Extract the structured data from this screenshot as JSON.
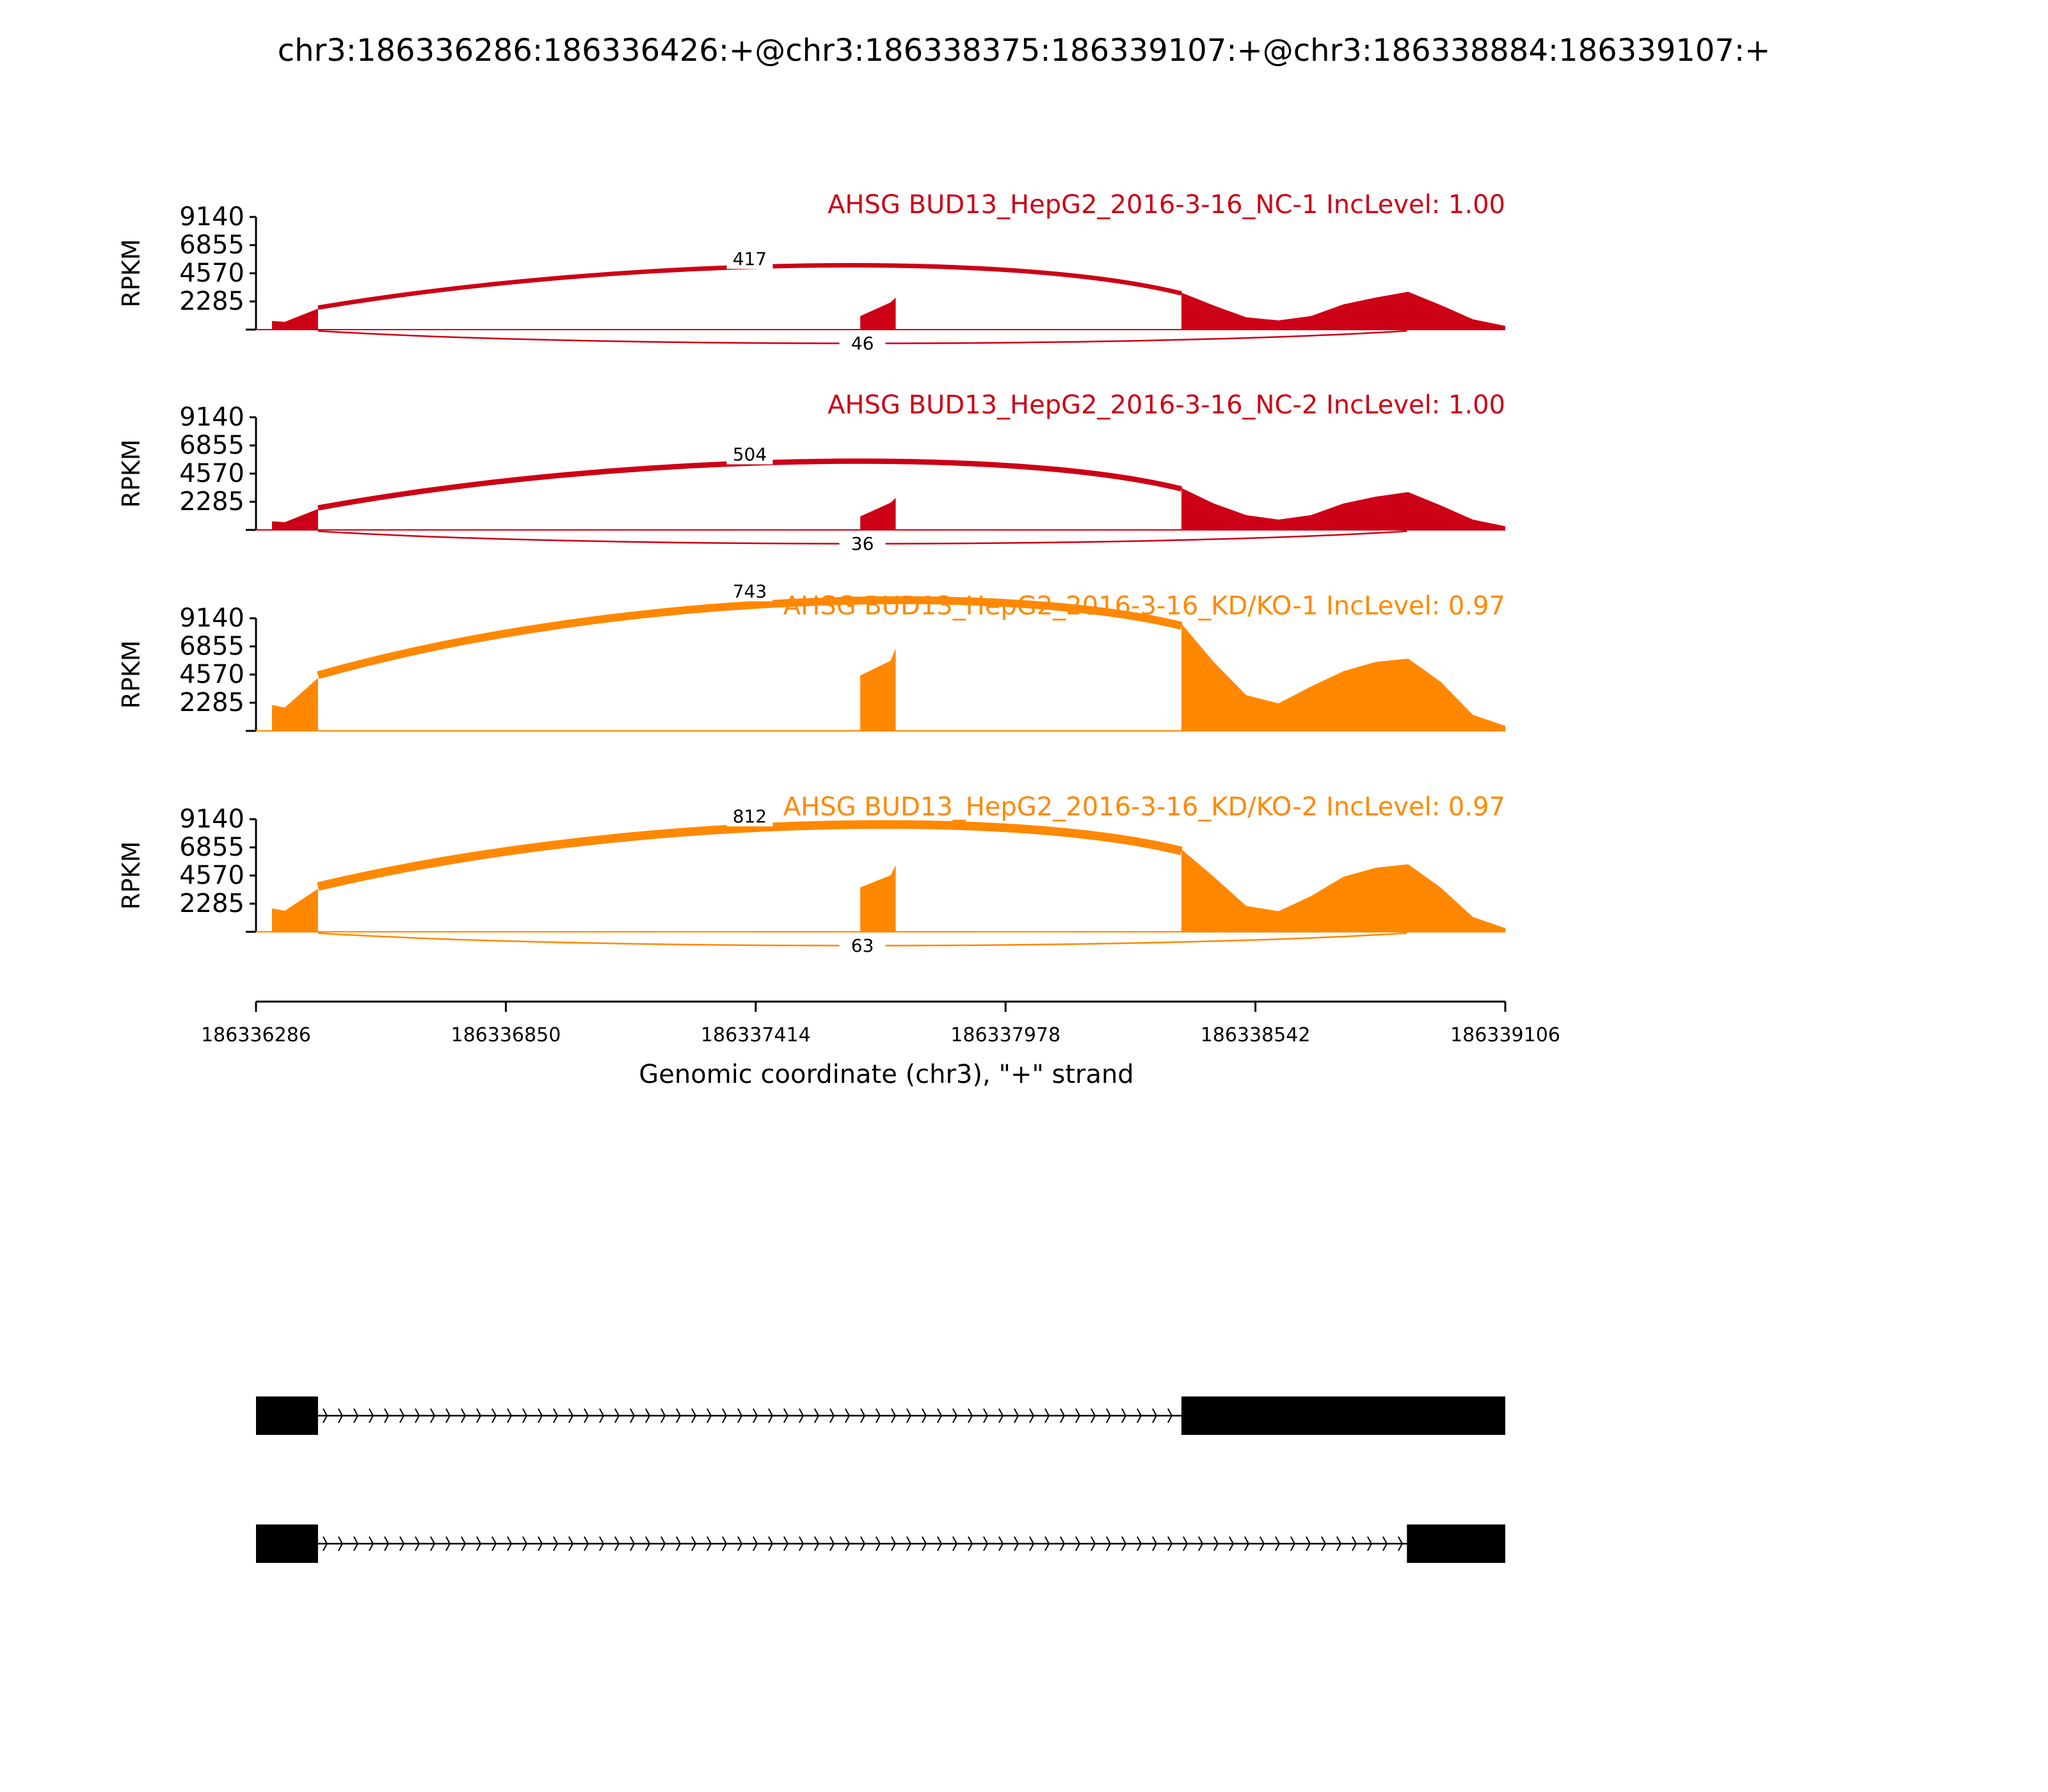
{
  "chart_data": {
    "type": "area",
    "title": "chr3:186336286:186336426:+@chr3:186338375:186339107:+@chr3:186338884:186339107:+",
    "xlabel": "Genomic coordinate (chr3), \"+\" strand",
    "ylabel": "RPKM",
    "xlim": [
      186336286,
      186339106
    ],
    "ylim": [
      0,
      9140
    ],
    "x_ticks": [
      "186336286",
      "186336850",
      "186337414",
      "186337978",
      "186338542",
      "186339106"
    ],
    "y_ticks": [
      "9140",
      "6855",
      "4570",
      "2285"
    ],
    "regions": {
      "exon1": [
        186336286,
        186336426
      ],
      "middle_exon": [
        186337650,
        186337730
      ],
      "exon2_long": [
        186338375,
        186339106
      ],
      "exon2_short": [
        186338884,
        186339106
      ]
    },
    "panels": [
      {
        "name": "AHSG BUD13_HepG2_2016-3-16_NC-1 IncLevel: 1.00",
        "color": "#cc0016",
        "coverage": {
          "exon1": [
            700,
            1700
          ],
          "middle": [
            1100,
            2600
          ],
          "exon2_profile": [
            3000,
            2100,
            1000,
            800,
            1100,
            2200,
            2600,
            3300,
            2000,
            900,
            300
          ]
        },
        "junctions": [
          {
            "start": 186336426,
            "end": 186338375,
            "count": "417",
            "side": "above"
          },
          {
            "start": 186336426,
            "end": 186338884,
            "count": "46",
            "side": "below"
          }
        ]
      },
      {
        "name": "AHSG BUD13_HepG2_2016-3-16_NC-2 IncLevel: 1.00",
        "color": "#cc0016",
        "coverage": {
          "exon1": [
            700,
            1700
          ],
          "middle": [
            1100,
            2600
          ],
          "exon2_profile": [
            3400,
            2300,
            1200,
            900,
            1200,
            2300,
            2700,
            3300,
            2000,
            900,
            300
          ]
        },
        "junctions": [
          {
            "start": 186336426,
            "end": 186338375,
            "count": "504",
            "side": "above"
          },
          {
            "start": 186336426,
            "end": 186338884,
            "count": "36",
            "side": "below"
          }
        ]
      },
      {
        "name": "AHSG BUD13_HepG2_2016-3-16_KD/KO-1 IncLevel: 0.97",
        "color": "#ff8800",
        "coverage": {
          "exon1": [
            2100,
            4300
          ],
          "middle": [
            4500,
            6700
          ],
          "exon2_profile": [
            8700,
            6000,
            2900,
            2400,
            3600,
            5200,
            5600,
            6300,
            4000,
            1400,
            400
          ]
        },
        "junctions": [
          {
            "start": 186336426,
            "end": 186338375,
            "count": "743",
            "side": "above"
          }
        ]
      },
      {
        "name": "AHSG BUD13_HepG2_2016-3-16_KD/KO-2 IncLevel: 0.97",
        "color": "#ff8800",
        "coverage": {
          "exon1": [
            1900,
            3500
          ],
          "middle": [
            3600,
            5400
          ],
          "exon2_profile": [
            6700,
            4800,
            2100,
            1800,
            2900,
            4800,
            5200,
            5900,
            3600,
            1300,
            300
          ]
        },
        "junctions": [
          {
            "start": 186336426,
            "end": 186338375,
            "count": "812",
            "side": "above"
          },
          {
            "start": 186336426,
            "end": 186338884,
            "count": "63",
            "side": "below"
          }
        ]
      }
    ],
    "transcripts": [
      {
        "exons": [
          [
            186336286,
            186336426
          ],
          [
            186338375,
            186339106
          ]
        ]
      },
      {
        "exons": [
          [
            186336286,
            186336426
          ],
          [
            186338884,
            186339106
          ]
        ]
      }
    ]
  }
}
